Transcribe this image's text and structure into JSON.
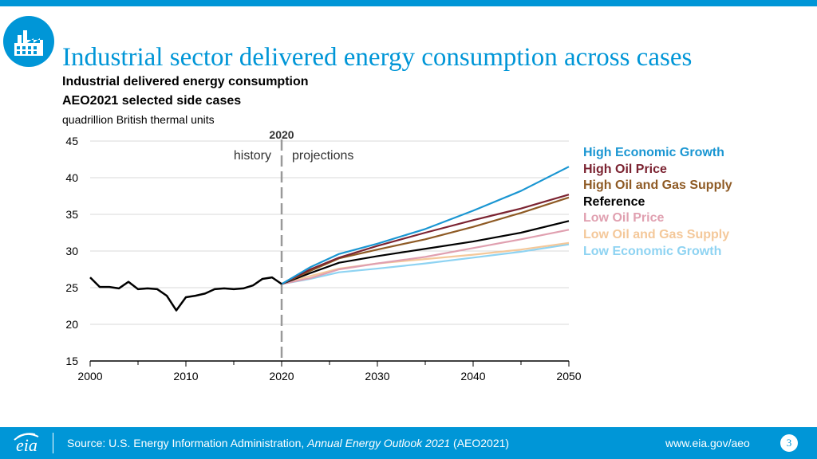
{
  "header": {
    "title": "Industrial sector delivered energy consumption across cases",
    "subtitle_line1": "Industrial delivered energy consumption",
    "subtitle_line2": "AEO2021 selected side cases",
    "units": "quadrillion British thermal units"
  },
  "chart_data": {
    "type": "line",
    "title": "Industrial delivered energy consumption",
    "ylabel": "quadrillion British thermal units",
    "xlabel": "",
    "xlim": [
      2000,
      2050
    ],
    "ylim": [
      15,
      45
    ],
    "x_ticks": [
      "2000",
      "2010",
      "2020",
      "2030",
      "2040",
      "2050"
    ],
    "y_ticks": [
      "15",
      "20",
      "25",
      "30",
      "35",
      "40",
      "45"
    ],
    "grid": "horizontal",
    "divider_year": 2020,
    "divider_label": "2020",
    "history_label": "history",
    "projections_label": "projections",
    "history": {
      "name": "Reference history",
      "color": "#000000",
      "x": [
        2000,
        2001,
        2002,
        2003,
        2004,
        2005,
        2006,
        2007,
        2008,
        2009,
        2010,
        2011,
        2012,
        2013,
        2014,
        2015,
        2016,
        2017,
        2018,
        2019,
        2020
      ],
      "values": [
        26.4,
        25.1,
        25.1,
        24.9,
        25.8,
        24.8,
        24.9,
        24.8,
        23.9,
        21.9,
        23.7,
        23.9,
        24.2,
        24.8,
        24.9,
        24.8,
        24.9,
        25.3,
        26.2,
        26.4,
        25.5
      ]
    },
    "series": [
      {
        "name": "High Economic Growth",
        "color": "#1a96d2",
        "x": [
          2020,
          2023,
          2026,
          2030,
          2035,
          2040,
          2045,
          2050
        ],
        "values": [
          25.5,
          27.8,
          29.6,
          31.0,
          33.0,
          35.5,
          38.2,
          41.5
        ]
      },
      {
        "name": "High Oil Price",
        "color": "#7b2331",
        "x": [
          2020,
          2023,
          2026,
          2030,
          2035,
          2040,
          2045,
          2050
        ],
        "values": [
          25.5,
          27.5,
          29.1,
          30.7,
          32.5,
          34.2,
          35.8,
          37.7
        ]
      },
      {
        "name": "High Oil and Gas Supply",
        "color": "#8e5a24",
        "x": [
          2020,
          2023,
          2026,
          2030,
          2035,
          2040,
          2045,
          2050
        ],
        "values": [
          25.5,
          27.3,
          29.0,
          30.2,
          31.6,
          33.3,
          35.2,
          37.3
        ]
      },
      {
        "name": "Reference",
        "color": "#000000",
        "x": [
          2020,
          2023,
          2026,
          2030,
          2035,
          2040,
          2045,
          2050
        ],
        "values": [
          25.5,
          27.0,
          28.4,
          29.3,
          30.3,
          31.3,
          32.5,
          34.1
        ]
      },
      {
        "name": "Low Oil Price",
        "color": "#e0a0b0",
        "x": [
          2020,
          2023,
          2026,
          2030,
          2035,
          2040,
          2045,
          2050
        ],
        "values": [
          25.5,
          26.3,
          27.5,
          28.3,
          29.2,
          30.4,
          31.6,
          32.9
        ]
      },
      {
        "name": "Low Oil and Gas Supply",
        "color": "#f4c89a",
        "x": [
          2020,
          2023,
          2026,
          2030,
          2035,
          2040,
          2045,
          2050
        ],
        "values": [
          25.5,
          26.6,
          27.6,
          28.3,
          28.9,
          29.5,
          30.2,
          31.1
        ]
      },
      {
        "name": "Low Economic Growth",
        "color": "#8ed3f2",
        "x": [
          2020,
          2023,
          2026,
          2030,
          2035,
          2040,
          2045,
          2050
        ],
        "values": [
          25.5,
          26.2,
          27.1,
          27.6,
          28.3,
          29.1,
          29.9,
          30.9
        ]
      }
    ]
  },
  "footer": {
    "logo_text": "eia",
    "source_prefix": "Source: U.S. Energy Information Administration, ",
    "source_italic": "Annual Energy Outlook 2021",
    "source_suffix": " (AEO2021)",
    "url": "www.eia.gov/aeo",
    "page_number": "3"
  },
  "colors": {
    "brand": "#0096d7",
    "gridline": "#d9d9d9",
    "divider": "#999999"
  }
}
